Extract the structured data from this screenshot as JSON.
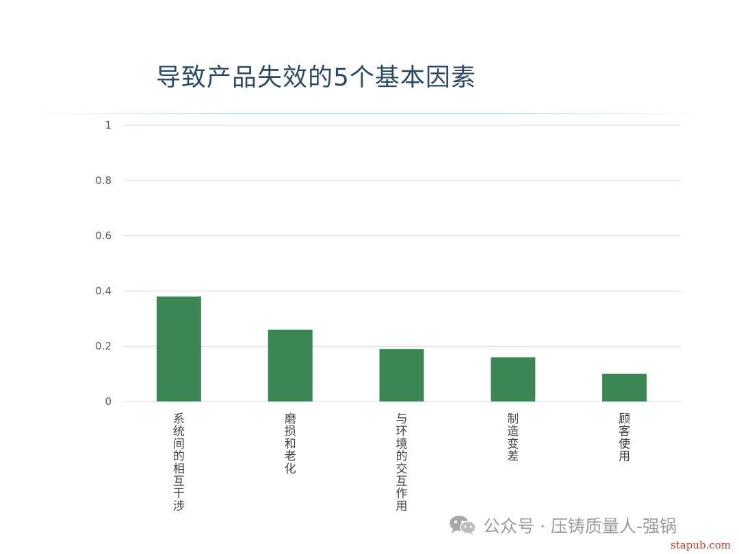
{
  "slide": {
    "title": "导致产品失效的5个基本因素"
  },
  "chart_data": {
    "type": "bar",
    "categories": [
      "系统间的相互干涉",
      "磨损和老化",
      "与环境的交互作用",
      "制造变差",
      "顾客使用"
    ],
    "values": [
      0.38,
      0.26,
      0.19,
      0.16,
      0.1
    ],
    "yticks": [
      "0",
      "0.2",
      "0.4",
      "0.6",
      "0.8",
      "1"
    ],
    "ylim": [
      0,
      1
    ],
    "grid": true,
    "legend": "none",
    "bar_color": "#3c8555",
    "grid_color": "#d9d9d9",
    "label_orientation": "vertical"
  },
  "watermark": {
    "icon": "wechat-icon",
    "text": "公众号 · 压铸质量人-强锅",
    "site": "stapub.com"
  }
}
